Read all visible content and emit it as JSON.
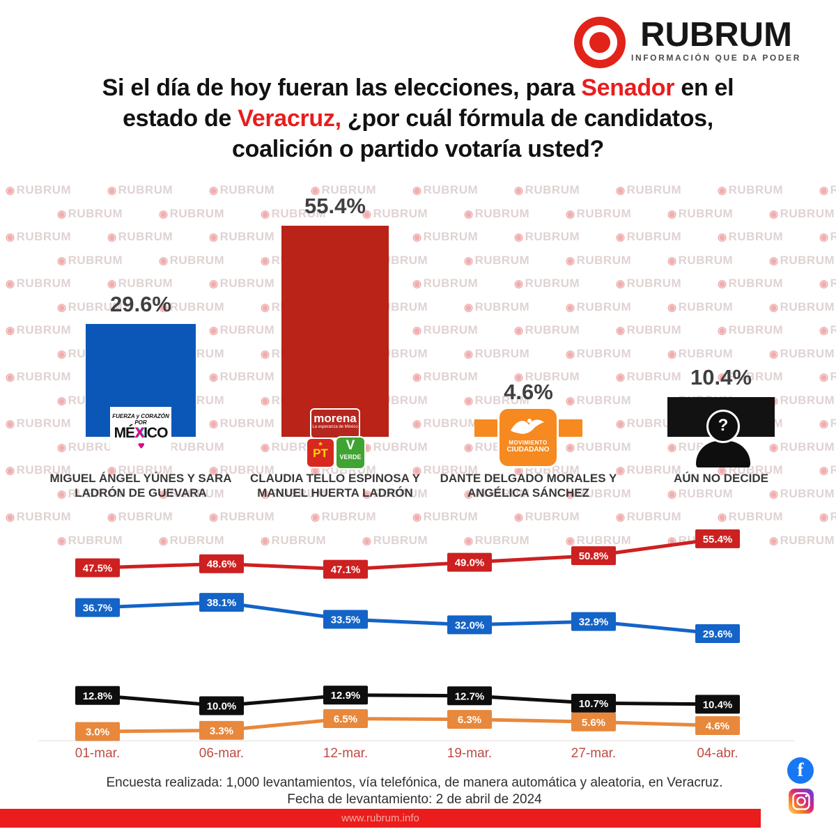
{
  "brand": {
    "name": "RUBRUM",
    "tagline": "INFORMACIÓN QUE DA PODER"
  },
  "colors": {
    "title_accent": "#E81D1D",
    "banner_red": "#EA1C1C",
    "brand_red": "#E2231A",
    "bar_blue": "#0B57B8",
    "bar_red": "#B92318",
    "bar_orange": "#F6891F",
    "bar_black": "#121212"
  },
  "title": {
    "lines": [
      {
        "parts": [
          {
            "t": "Si el día de hoy fueran las elecciones, para "
          },
          {
            "t": "Senador",
            "red": true
          },
          {
            "t": " en el"
          }
        ]
      },
      {
        "parts": [
          {
            "t": "estado de "
          },
          {
            "t": "Veracruz,",
            "red": true
          },
          {
            "t": " ¿por cuál fórmula de candidatos,"
          }
        ]
      },
      {
        "parts": [
          {
            "t": "coalición o partido votaría usted?"
          }
        ]
      }
    ]
  },
  "chart_data": [
    {
      "type": "bar",
      "title": "Intención de voto para Senador en Veracruz",
      "categories": [
        "MIGUEL ÁNGEL YÚNES Y SARA LADRÓN DE GUEVARA",
        "CLAUDIA TELLO ESPINOSA Y MANUEL HUERTA LADRÓN",
        "DANTE DELGADO MORALES Y ANGÉLICA SÁNCHEZ",
        "AÚN NO DECIDE"
      ],
      "values": [
        29.6,
        55.4,
        4.6,
        10.4
      ],
      "value_labels": [
        "29.6%",
        "55.4%",
        "4.6%",
        "10.4%"
      ],
      "colors": [
        "#0B57B8",
        "#B92318",
        "#F6891F",
        "#121212"
      ],
      "ylim": [
        0,
        60
      ],
      "grid": false
    },
    {
      "type": "line",
      "x": [
        "01-mar.",
        "06-mar.",
        "12-mar.",
        "19-mar.",
        "27-mar.",
        "04-abr."
      ],
      "series": [
        {
          "name": "CLAUDIA TELLO ESPINOSA Y MANUEL HUERTA LADRÓN",
          "color": "#CD2020",
          "values": [
            47.5,
            48.6,
            47.1,
            49.0,
            50.8,
            55.4
          ]
        },
        {
          "name": "MIGUEL ÁNGEL YÚNES Y SARA LADRÓN DE GUEVARA",
          "color": "#1463C7",
          "values": [
            36.7,
            38.1,
            33.5,
            32.0,
            32.9,
            29.6
          ]
        },
        {
          "name": "AÚN NO DECIDE",
          "color": "#0E0E0E",
          "values": [
            12.8,
            10.0,
            12.9,
            12.7,
            10.7,
            10.4
          ]
        },
        {
          "name": "DANTE DELGADO MORALES Y ANGÉLICA SÁNCHEZ",
          "color": "#E8883C",
          "values": [
            3.0,
            3.3,
            6.5,
            6.3,
            5.6,
            4.6
          ]
        }
      ],
      "legend": "none",
      "grid": false
    }
  ],
  "parties": {
    "fcm": {
      "script_text": "FUERZA y CORAZÓN POR",
      "mexico_pre": "MÉ",
      "mexico_x": "X",
      "mexico_post": "ICO"
    },
    "morena": {
      "name": "morena",
      "tagline": "La esperanza de México"
    },
    "pt": {
      "label": "PT"
    },
    "verde": {
      "v": "V",
      "label": "VERDE"
    },
    "mc": {
      "line1": "MOVIMIENTO",
      "line2": "CIUDADANO"
    },
    "undecided": {
      "mark": "?"
    }
  },
  "footer": {
    "line1": "Encuesta realizada: 1,000 levantamientos, vía telefónica, de manera automática y aleatoria, en Veracruz.",
    "line2": "Fecha de levantamiento: 2 de abril de 2024",
    "url": "www.rubrum.info"
  },
  "watermark": "RUBRUM",
  "icons": [
    "rubrum-target-icon",
    "facebook-icon",
    "instagram-icon"
  ]
}
